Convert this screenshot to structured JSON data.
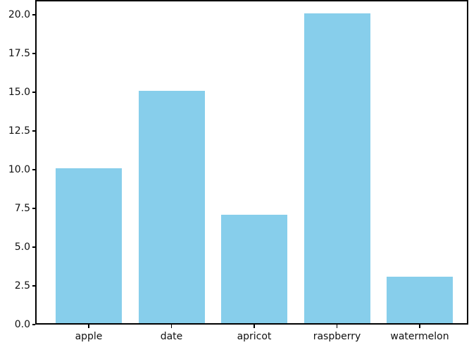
{
  "figure": {
    "background": "#ffffff"
  },
  "chart_data": {
    "type": "bar",
    "categories": [
      "apple",
      "date",
      "apricot",
      "raspberry",
      "watermelon"
    ],
    "values": [
      10,
      15,
      7,
      20,
      3
    ],
    "title": "",
    "xlabel": "",
    "ylabel": "",
    "ylim": [
      0,
      21
    ],
    "yticks": [
      0.0,
      2.5,
      5.0,
      7.5,
      10.0,
      12.5,
      15.0,
      17.5,
      20.0
    ],
    "ytick_labels": [
      "0.0",
      "2.5",
      "5.0",
      "7.5",
      "10.0",
      "12.5",
      "15.0",
      "17.5",
      "20.0"
    ],
    "bar_color": "#87CEEB",
    "axis_color": "#000000",
    "tick_label_color": "#111111",
    "grid": false,
    "legend_position": "none"
  }
}
